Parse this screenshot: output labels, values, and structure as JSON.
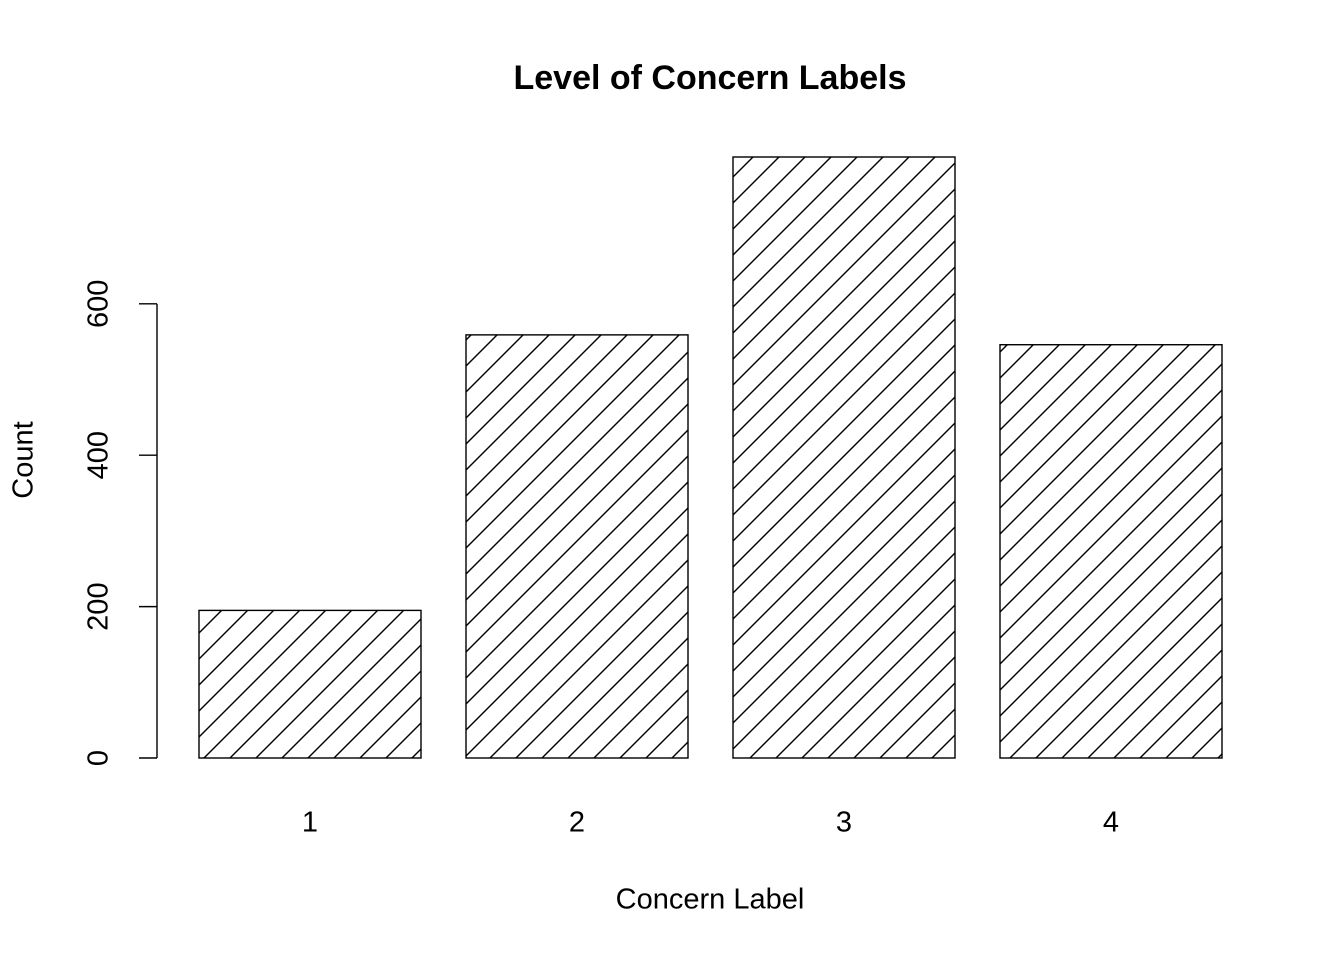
{
  "chart_data": {
    "type": "bar",
    "title": "Level of Concern Labels",
    "x_label": "Concern Label",
    "y_label": "Count",
    "categories": [
      "1",
      "2",
      "3",
      "4"
    ],
    "values": [
      195,
      559,
      794,
      546
    ],
    "color": "#ffffff",
    "hatch": true,
    "ylim": [
      0,
      794
    ],
    "yticks": [
      0,
      200,
      400,
      600
    ]
  }
}
